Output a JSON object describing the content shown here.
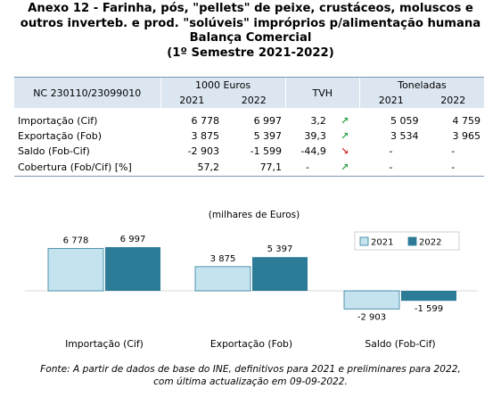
{
  "title": {
    "line1": "Anexo 12 - Farinha, pós, \"pellets\" de peixe, crustáceos, moluscos e",
    "line2": "outros inverteb. e prod. \"solúveis\" impróprios p/alimentação humana",
    "line3": "Balança Comercial",
    "line4": "(1º Semestre 2021-2022)"
  },
  "table": {
    "nc_label": "NC 230110/23099010",
    "group1": "1000 Euros",
    "tvh": "TVH",
    "group2": "Toneladas",
    "years": [
      "2021",
      "2022",
      "2021",
      "2022"
    ],
    "rows": [
      {
        "label": "Importação (Cif)",
        "e2021": "6 778",
        "e2022": "6 997",
        "tvh": "3,2",
        "arrow": "↗",
        "t2021": "5 059",
        "t2022": "4 759",
        "trend": "up"
      },
      {
        "label": "Exportação (Fob)",
        "e2021": "3 875",
        "e2022": "5 397",
        "tvh": "39,3",
        "arrow": "↗",
        "t2021": "3 534",
        "t2022": "3 965",
        "trend": "up"
      },
      {
        "label": "Saldo (Fob-Cif)",
        "e2021": "-2 903",
        "e2022": "-1 599",
        "tvh": "-44,9",
        "arrow": "↘",
        "t2021": "-",
        "t2022": "-",
        "trend": "down"
      },
      {
        "label": "Cobertura (Fob/Cif) [%]",
        "e2021": "57,2",
        "e2022": "77,1",
        "tvh": "-",
        "arrow": "↗",
        "t2021": "-",
        "t2022": "-",
        "trend": "up"
      }
    ]
  },
  "chart_data": {
    "type": "bar",
    "title": "(milhares de Euros)",
    "categories": [
      "Importação (Cif)",
      "Exportação (Fob)",
      "Saldo (Fob-Cif)"
    ],
    "series": [
      {
        "name": "2021",
        "values": [
          6778,
          3875,
          -2903
        ],
        "labels": [
          "6 778",
          "3 875",
          "-2 903"
        ],
        "color": "#c5e3ef"
      },
      {
        "name": "2022",
        "values": [
          6997,
          5397,
          -1599
        ],
        "labels": [
          "6 997",
          "5 397",
          "-1 599"
        ],
        "color": "#2c7c98"
      }
    ],
    "legend": "top-right",
    "grid": false
  },
  "footer": {
    "line1": "Fonte: A partir de dados de base do INE, definitivos para 2021 e preliminares para 2022,",
    "line2": "com última actualização em 09-09-2022."
  }
}
